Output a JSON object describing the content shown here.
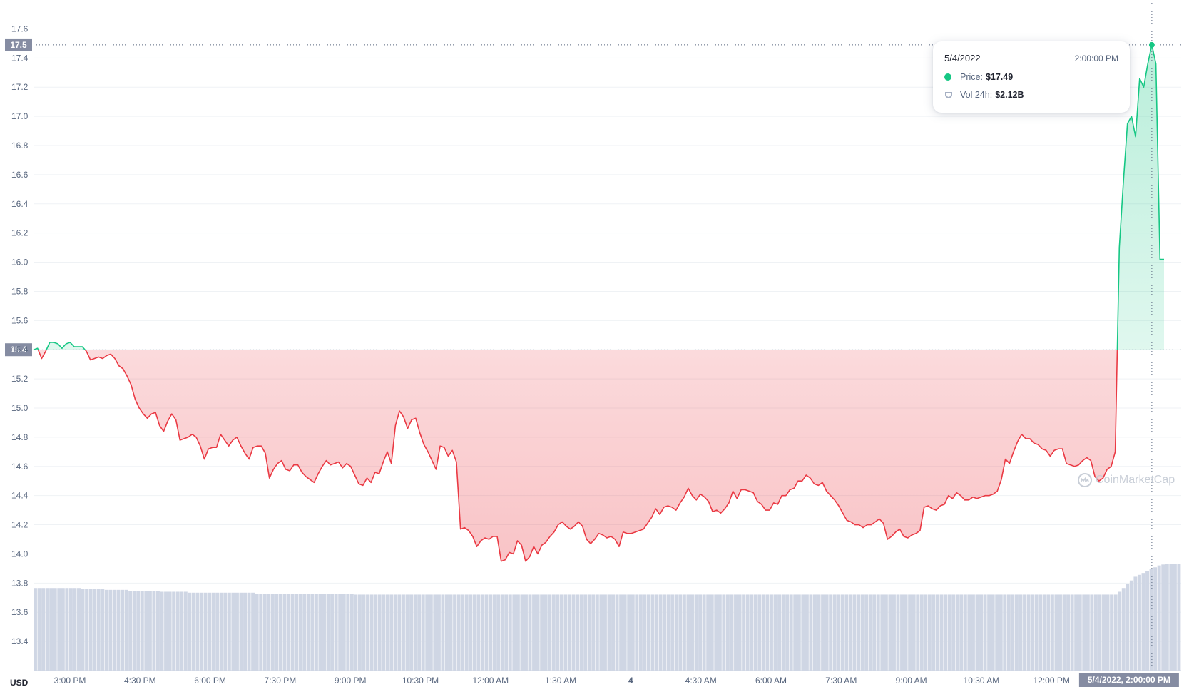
{
  "currency": "USD",
  "tooltip": {
    "date": "5/4/2022",
    "time": "2:00:00 PM",
    "price_label": "Price:",
    "price_value": "$17.49",
    "vol_label": "Vol 24h:",
    "vol_value": "$2.12B"
  },
  "watermark": "CoinMarketCap",
  "colors": {
    "up": "#16c784",
    "down": "#ea3943",
    "volume": "#cfd6e4",
    "grid": "#eff2f5",
    "label_bg": "#858ca2"
  },
  "chart_data": {
    "type": "line",
    "y_axis": {
      "range": [
        13.2,
        17.7
      ],
      "ticks": [
        "17.6",
        "17.4",
        "17.2",
        "17.0",
        "16.8",
        "16.6",
        "16.4",
        "16.2",
        "16.0",
        "15.8",
        "15.6",
        "15.4",
        "15.2",
        "15.0",
        "14.8",
        "14.6",
        "14.4",
        "14.2",
        "14.0",
        "13.8",
        "13.6",
        "13.4"
      ]
    },
    "x_axis": {
      "ticks": [
        "3:00 PM",
        "4:30 PM",
        "6:00 PM",
        "7:30 PM",
        "9:00 PM",
        "10:30 PM",
        "12:00 AM",
        "1:30 AM",
        "4",
        "4:30 AM",
        "6:00 AM",
        "7:30 AM",
        "9:00 AM",
        "10:30 AM",
        "12:00 PM"
      ]
    },
    "reference_price": 15.4,
    "crosshair": {
      "price_label": "17.5",
      "time_label": "5/4/2022, 2:00:00 PM"
    },
    "grid": true,
    "price_series": [
      15.4,
      15.41,
      15.34,
      15.39,
      15.45,
      15.45,
      15.44,
      15.41,
      15.44,
      15.45,
      15.42,
      15.42,
      15.42,
      15.39,
      15.33,
      15.34,
      15.35,
      15.34,
      15.36,
      15.37,
      15.34,
      15.29,
      15.27,
      15.22,
      15.16,
      15.06,
      15.0,
      14.96,
      14.93,
      14.96,
      14.97,
      14.88,
      14.84,
      14.91,
      14.96,
      14.92,
      14.78,
      14.79,
      14.8,
      14.82,
      14.8,
      14.74,
      14.65,
      14.72,
      14.73,
      14.73,
      14.82,
      14.78,
      14.74,
      14.78,
      14.8,
      14.74,
      14.69,
      14.65,
      14.73,
      14.74,
      14.74,
      14.69,
      14.52,
      14.58,
      14.62,
      14.64,
      14.58,
      14.57,
      14.61,
      14.61,
      14.56,
      14.53,
      14.51,
      14.49,
      14.55,
      14.6,
      14.64,
      14.61,
      14.62,
      14.63,
      14.59,
      14.62,
      14.6,
      14.54,
      14.48,
      14.47,
      14.52,
      14.49,
      14.56,
      14.55,
      14.63,
      14.7,
      14.62,
      14.88,
      14.98,
      14.94,
      14.86,
      14.92,
      14.93,
      14.83,
      14.75,
      14.7,
      14.64,
      14.58,
      14.74,
      14.73,
      14.67,
      14.71,
      14.63,
      14.17,
      14.18,
      14.16,
      14.12,
      14.05,
      14.09,
      14.11,
      14.1,
      14.12,
      14.12,
      13.95,
      13.96,
      14.01,
      14.0,
      14.09,
      14.06,
      13.95,
      13.98,
      14.05,
      14.0,
      14.06,
      14.08,
      14.12,
      14.15,
      14.2,
      14.22,
      14.19,
      14.17,
      14.19,
      14.22,
      14.19,
      14.1,
      14.07,
      14.1,
      14.14,
      14.13,
      14.11,
      14.12,
      14.1,
      14.05,
      14.15,
      14.14,
      14.14,
      14.15,
      14.16,
      14.17,
      14.21,
      14.25,
      14.31,
      14.27,
      14.32,
      14.33,
      14.32,
      14.3,
      14.35,
      14.39,
      14.45,
      14.4,
      14.37,
      14.41,
      14.39,
      14.36,
      14.29,
      14.3,
      14.28,
      14.31,
      14.35,
      14.43,
      14.38,
      14.44,
      14.44,
      14.43,
      14.42,
      14.36,
      14.34,
      14.3,
      14.3,
      14.35,
      14.34,
      14.4,
      14.4,
      14.44,
      14.45,
      14.5,
      14.5,
      14.54,
      14.52,
      14.48,
      14.47,
      14.49,
      14.43,
      14.4,
      14.37,
      14.33,
      14.28,
      14.23,
      14.22,
      14.2,
      14.2,
      14.18,
      14.2,
      14.2,
      14.22,
      14.24,
      14.21,
      14.1,
      14.12,
      14.15,
      14.17,
      14.12,
      14.11,
      14.13,
      14.14,
      14.16,
      14.32,
      14.33,
      14.31,
      14.3,
      14.33,
      14.34,
      14.4,
      14.38,
      14.42,
      14.4,
      14.37,
      14.37,
      14.39,
      14.38,
      14.39,
      14.4,
      14.4,
      14.41,
      14.43,
      14.51,
      14.65,
      14.62,
      14.7,
      14.77,
      14.82,
      14.79,
      14.79,
      14.76,
      14.75,
      14.72,
      14.71,
      14.67,
      14.71,
      14.72,
      14.72,
      14.62,
      14.61,
      14.6,
      14.61,
      14.64,
      14.66,
      14.64,
      14.53,
      14.5,
      14.52,
      14.58,
      14.6,
      14.7,
      16.1,
      16.55,
      16.95,
      17.0,
      16.86,
      17.26,
      17.2,
      17.36,
      17.49,
      17.36,
      16.02,
      16.02
    ],
    "volume_series_note": "",
    "volume_series": [
      0.88,
      0.88,
      0.88,
      0.88,
      0.88,
      0.88,
      0.88,
      0.88,
      0.88,
      0.88,
      0.88,
      0.88,
      0.87,
      0.87,
      0.87,
      0.87,
      0.87,
      0.87,
      0.86,
      0.86,
      0.86,
      0.86,
      0.86,
      0.86,
      0.85,
      0.85,
      0.85,
      0.85,
      0.85,
      0.85,
      0.85,
      0.85,
      0.84,
      0.84,
      0.84,
      0.84,
      0.84,
      0.84,
      0.84,
      0.83,
      0.83,
      0.83,
      0.83,
      0.83,
      0.83,
      0.83,
      0.83,
      0.83,
      0.83,
      0.83,
      0.83,
      0.83,
      0.83,
      0.83,
      0.83,
      0.83,
      0.82,
      0.82,
      0.82,
      0.82,
      0.82,
      0.82,
      0.82,
      0.82,
      0.82,
      0.82,
      0.82,
      0.82,
      0.82,
      0.82,
      0.82,
      0.82,
      0.82,
      0.82,
      0.82,
      0.82,
      0.82,
      0.82,
      0.82,
      0.82,
      0.82,
      0.81,
      0.81,
      0.81,
      0.81,
      0.81,
      0.81,
      0.81,
      0.81,
      0.81,
      0.81,
      0.81,
      0.81,
      0.81,
      0.81,
      0.81,
      0.81,
      0.81,
      0.81,
      0.81,
      0.81,
      0.81,
      0.81,
      0.81,
      0.81,
      0.81,
      0.81,
      0.81,
      0.81,
      0.81,
      0.81,
      0.81,
      0.81,
      0.81,
      0.81,
      0.81,
      0.81,
      0.81,
      0.81,
      0.81,
      0.81,
      0.81,
      0.81,
      0.81,
      0.81,
      0.81,
      0.81,
      0.81,
      0.81,
      0.81,
      0.81,
      0.81,
      0.81,
      0.81,
      0.81,
      0.81,
      0.81,
      0.81,
      0.81,
      0.81,
      0.81,
      0.81,
      0.81,
      0.81,
      0.81,
      0.81,
      0.81,
      0.81,
      0.81,
      0.81,
      0.81,
      0.81,
      0.81,
      0.81,
      0.81,
      0.81,
      0.81,
      0.81,
      0.81,
      0.81,
      0.81,
      0.81,
      0.81,
      0.81,
      0.81,
      0.81,
      0.81,
      0.81,
      0.81,
      0.81,
      0.81,
      0.81,
      0.81,
      0.81,
      0.81,
      0.81,
      0.81,
      0.81,
      0.81,
      0.81,
      0.81,
      0.81,
      0.81,
      0.81,
      0.81,
      0.81,
      0.81,
      0.81,
      0.81,
      0.81,
      0.81,
      0.81,
      0.81,
      0.81,
      0.81,
      0.81,
      0.81,
      0.81,
      0.81,
      0.81,
      0.81,
      0.81,
      0.81,
      0.81,
      0.81,
      0.81,
      0.81,
      0.81,
      0.81,
      0.81,
      0.81,
      0.81,
      0.81,
      0.81,
      0.81,
      0.81,
      0.81,
      0.81,
      0.81,
      0.81,
      0.81,
      0.81,
      0.81,
      0.81,
      0.81,
      0.81,
      0.81,
      0.81,
      0.81,
      0.81,
      0.81,
      0.81,
      0.81,
      0.81,
      0.81,
      0.81,
      0.81,
      0.81,
      0.81,
      0.81,
      0.81,
      0.81,
      0.81,
      0.81,
      0.81,
      0.81,
      0.81,
      0.81,
      0.81,
      0.81,
      0.81,
      0.81,
      0.81,
      0.81,
      0.81,
      0.81,
      0.81,
      0.81,
      0.81,
      0.81,
      0.81,
      0.81,
      0.81,
      0.81,
      0.81,
      0.81,
      0.81,
      0.81,
      0.81,
      0.81,
      0.81,
      0.81,
      0.81,
      0.81,
      0.84,
      0.88,
      0.92,
      0.96,
      1.0,
      1.02,
      1.04,
      1.06,
      1.08,
      1.1,
      1.12,
      1.13,
      1.14,
      1.14,
      1.14,
      1.14
    ]
  }
}
